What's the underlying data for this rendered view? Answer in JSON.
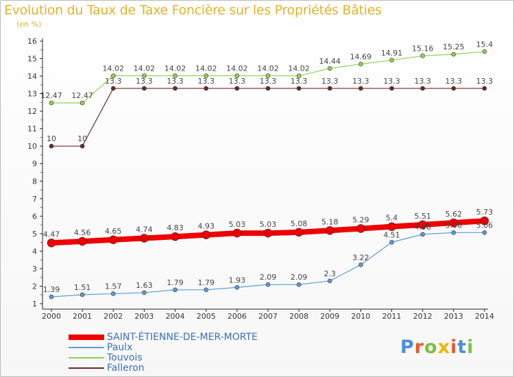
{
  "title": "Evolution du Taux de Taxe Foncière sur les Propriétés Bâties",
  "subtitle": "(en %)",
  "logo": {
    "text": "Proxiti",
    "colors": [
      "#4a90d9",
      "#e85b2b",
      "#7ac143",
      "#f5b400",
      "#e85b2b",
      "#4a90d9",
      "#7ac143"
    ]
  },
  "chart_data": {
    "type": "line",
    "x": [
      "2000",
      "2001",
      "2002",
      "2003",
      "2004",
      "2005",
      "2006",
      "2007",
      "2008",
      "2009",
      "2010",
      "2011",
      "2012",
      "2013",
      "2014"
    ],
    "ylim": [
      1,
      16
    ],
    "yticks": [
      1,
      2,
      3,
      4,
      5,
      6,
      7,
      8,
      9,
      10,
      11,
      12,
      13,
      14,
      15,
      16
    ],
    "grid": false,
    "legend_position": "bottom-left",
    "series": [
      {
        "name": "Falleron",
        "color": "#6b2a2a",
        "width": 1.2,
        "marker": 3,
        "values": [
          10,
          10,
          13.3,
          13.3,
          13.3,
          13.3,
          13.3,
          13.3,
          13.3,
          13.3,
          13.3,
          13.3,
          13.3,
          13.3,
          13.3
        ],
        "labels": [
          "10",
          "10",
          "13.3",
          "13.3",
          "13.3",
          "13.3",
          "13.3",
          "13.3",
          "13.3",
          "13.3",
          "13.3",
          "13.3",
          "13.3",
          "13.3",
          "13.3"
        ],
        "label_pos": "above"
      },
      {
        "name": "Touvois",
        "color": "#8fd14f",
        "width": 1.2,
        "marker": 3,
        "values": [
          12.47,
          12.47,
          14.02,
          14.02,
          14.02,
          14.02,
          14.02,
          14.02,
          14.02,
          14.44,
          14.69,
          14.91,
          15.16,
          15.25,
          15.4
        ],
        "labels": [
          "12.47",
          "12.47",
          "14.02",
          "14.02",
          "14.02",
          "14.02",
          "14.02",
          "14.02",
          "14.02",
          "14.44",
          "14.69",
          "14.91",
          "15.16",
          "15.25",
          "15.4"
        ],
        "label_pos": "above"
      },
      {
        "name": "Paulx",
        "color": "#5a9bd5",
        "width": 1.2,
        "marker": 3,
        "values": [
          1.39,
          1.51,
          1.57,
          1.63,
          1.79,
          1.79,
          1.93,
          2.09,
          2.09,
          2.3,
          3.22,
          4.51,
          4.96,
          5.06,
          5.06
        ],
        "labels": [
          "1.39",
          "1.51",
          "1.57",
          "1.63",
          "1.79",
          "1.79",
          "1.93",
          "2.09",
          "2.09",
          "2.3",
          "3.22",
          "4.51",
          "4.96",
          "5.06",
          "5.06"
        ],
        "label_pos": "above"
      },
      {
        "name": "SAINT-ÉTIENNE-DE-MER-MORTE",
        "color": "#ee0000",
        "width": 8,
        "marker": 6,
        "values": [
          4.47,
          4.56,
          4.65,
          4.74,
          4.83,
          4.93,
          5.03,
          5.03,
          5.08,
          5.18,
          5.29,
          5.4,
          5.51,
          5.62,
          5.73
        ],
        "labels": [
          "4.47",
          "4.56",
          "4.65",
          "4.74",
          "4.83",
          "4.93",
          "5.03",
          "5.03",
          "5.08",
          "5.18",
          "5.29",
          "5.4",
          "5.51",
          "5.62",
          "5.73"
        ],
        "label_pos": "above"
      }
    ]
  }
}
